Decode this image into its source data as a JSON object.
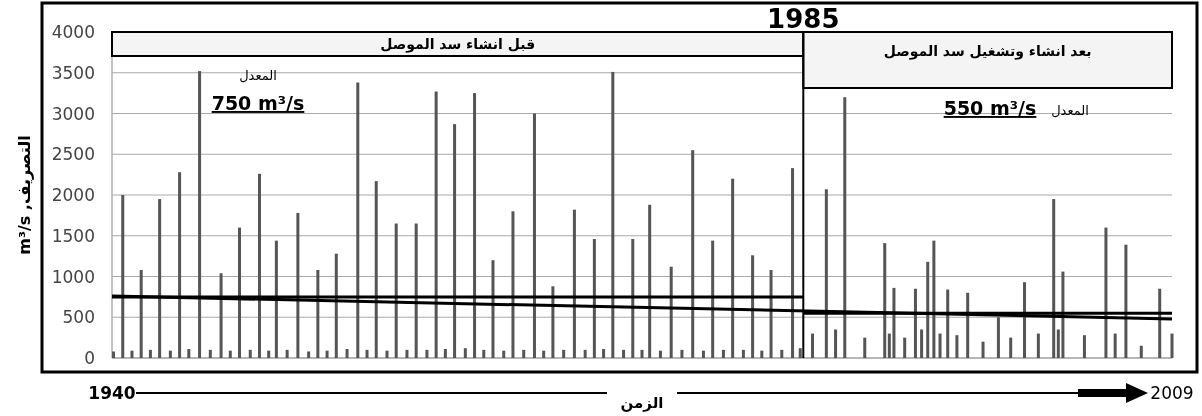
{
  "chart_data": {
    "type": "bar",
    "xlabel": "الزمن",
    "ylabel": "التصريف, m³/s",
    "xlim": [
      1940,
      2009
    ],
    "xticks": [
      1940,
      2009
    ],
    "ylim": [
      0,
      4000
    ],
    "yticks": [
      0,
      500,
      1000,
      1500,
      2000,
      2500,
      3000,
      3500,
      4000
    ],
    "grid": "y",
    "series": [
      {
        "color": "#555555",
        "x": [
          1940.1,
          1940.7,
          1941.3,
          1941.9,
          1942.5,
          1943.1,
          1943.8,
          1944.4,
          1945.0,
          1945.7,
          1946.4,
          1947.1,
          1947.7,
          1948.3,
          1949.0,
          1949.6,
          1950.2,
          1950.7,
          1951.4,
          1952.1,
          1952.8,
          1953.4,
          1954.0,
          1954.6,
          1955.3,
          1956.0,
          1956.6,
          1957.2,
          1957.9,
          1958.5,
          1959.2,
          1959.8,
          1960.5,
          1961.1,
          1961.7,
          1962.3,
          1963.0,
          1963.6,
          1964.2,
          1964.8,
          1965.5,
          1966.1,
          1966.8,
          1967.5,
          1968.1,
          1968.7,
          1969.4,
          1970.1,
          1970.8,
          1971.4,
          1972.0,
          1972.6,
          1973.3,
          1973.9,
          1974.5,
          1975.0,
          1975.7,
          1976.4,
          1977.1,
          1977.8,
          1978.5,
          1979.1,
          1979.8,
          1980.4,
          1981.1,
          1981.7,
          1982.3,
          1982.9,
          1983.6,
          1984.3,
          1984.8,
          1985.6,
          1986.5,
          1987.1,
          1987.7,
          1989.0,
          1990.3,
          1990.6,
          1990.9,
          1991.6,
          1992.3,
          1992.7,
          1993.1,
          1993.5,
          1993.9,
          1994.4,
          1995.0,
          1995.7,
          1996.7,
          1997.7,
          1998.5,
          1999.4,
          2000.3,
          2001.3,
          2001.6,
          2001.9,
          2003.3,
          2004.7,
          2005.3,
          2006.0,
          2007.0,
          2008.2,
          2009.0
        ],
        "values": [
          80,
          2000,
          90,
          1080,
          100,
          1950,
          90,
          2280,
          110,
          3520,
          100,
          1040,
          90,
          1600,
          100,
          2260,
          90,
          1440,
          100,
          1780,
          80,
          1080,
          90,
          1280,
          110,
          3380,
          100,
          2170,
          90,
          1650,
          100,
          1650,
          100,
          3270,
          110,
          2870,
          120,
          3250,
          100,
          1200,
          90,
          1800,
          100,
          3000,
          90,
          880,
          100,
          1820,
          100,
          1460,
          110,
          3510,
          100,
          1460,
          100,
          1880,
          90,
          1120,
          100,
          2550,
          90,
          1440,
          100,
          2200,
          100,
          1260,
          90,
          1080,
          100,
          2330,
          120,
          300,
          2070,
          350,
          3200,
          250,
          1410,
          300,
          860,
          250,
          850,
          350,
          1180,
          1440,
          300,
          840,
          280,
          800,
          200,
          500,
          250,
          930,
          300,
          1950,
          350,
          1060,
          280,
          1600,
          300,
          1390,
          150,
          850,
          300
        ]
      },
      {
        "type": "line",
        "color": "#000000",
        "line_style": "solid",
        "x": [
          1940,
          1985
        ],
        "values": [
          750,
          750
        ]
      },
      {
        "type": "line",
        "color": "#000000",
        "line_style": "solid",
        "x": [
          1985,
          2009
        ],
        "values": [
          550,
          550
        ]
      },
      {
        "type": "line",
        "color": "#000000",
        "line_style": "solid",
        "x": [
          1940,
          2009
        ],
        "values": [
          760,
          480
        ]
      }
    ],
    "ref_lines": [
      {
        "axis": "x",
        "value": 1985,
        "label": "1985",
        "color": "#000000"
      }
    ],
    "bands": [
      {
        "axis": "x",
        "from": 1940,
        "to": 1985,
        "label": "قبل انشاء سد الموصل",
        "color": "#f4f4f4"
      },
      {
        "axis": "x",
        "from": 1985,
        "to": 2009,
        "label": "بعد انشاء وتشغيل سد الموصل",
        "color": "#f4f4f4"
      }
    ],
    "annotations": [
      "المعدل",
      "750 m³/s",
      "550 m³/s",
      "المعدل"
    ]
  }
}
